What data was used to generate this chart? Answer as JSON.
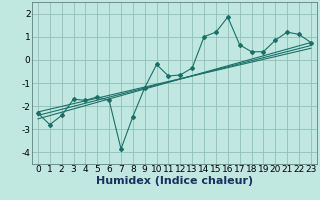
{
  "title": "",
  "xlabel": "Humidex (Indice chaleur)",
  "ylabel": "",
  "background_color": "#c0e8e0",
  "grid_color": "#90c0b8",
  "line_color": "#1a7068",
  "xlim": [
    -0.5,
    23.5
  ],
  "ylim": [
    -4.5,
    2.5
  ],
  "x_ticks": [
    0,
    1,
    2,
    3,
    4,
    5,
    6,
    7,
    8,
    9,
    10,
    11,
    12,
    13,
    14,
    15,
    16,
    17,
    18,
    19,
    20,
    21,
    22,
    23
  ],
  "y_ticks": [
    -4,
    -3,
    -2,
    -1,
    0,
    1,
    2
  ],
  "data_x": [
    0,
    1,
    2,
    3,
    4,
    5,
    6,
    7,
    8,
    9,
    10,
    11,
    12,
    13,
    14,
    15,
    16,
    17,
    18,
    19,
    20,
    21,
    22,
    23
  ],
  "data_y": [
    -2.3,
    -2.8,
    -2.4,
    -1.7,
    -1.75,
    -1.6,
    -1.75,
    -3.85,
    -2.45,
    -1.2,
    -0.2,
    -0.7,
    -0.65,
    -0.35,
    1.0,
    1.2,
    1.85,
    0.65,
    0.35,
    0.35,
    0.85,
    1.2,
    1.1,
    0.75
  ],
  "reg_lines": [
    {
      "x0": 0,
      "y0": -2.55,
      "x1": 23,
      "y1": 0.75
    },
    {
      "x0": 0,
      "y0": -2.4,
      "x1": 23,
      "y1": 0.62
    },
    {
      "x0": 0,
      "y0": -2.25,
      "x1": 23,
      "y1": 0.5
    }
  ],
  "xlabel_fontsize": 8,
  "tick_fontsize": 6.5
}
